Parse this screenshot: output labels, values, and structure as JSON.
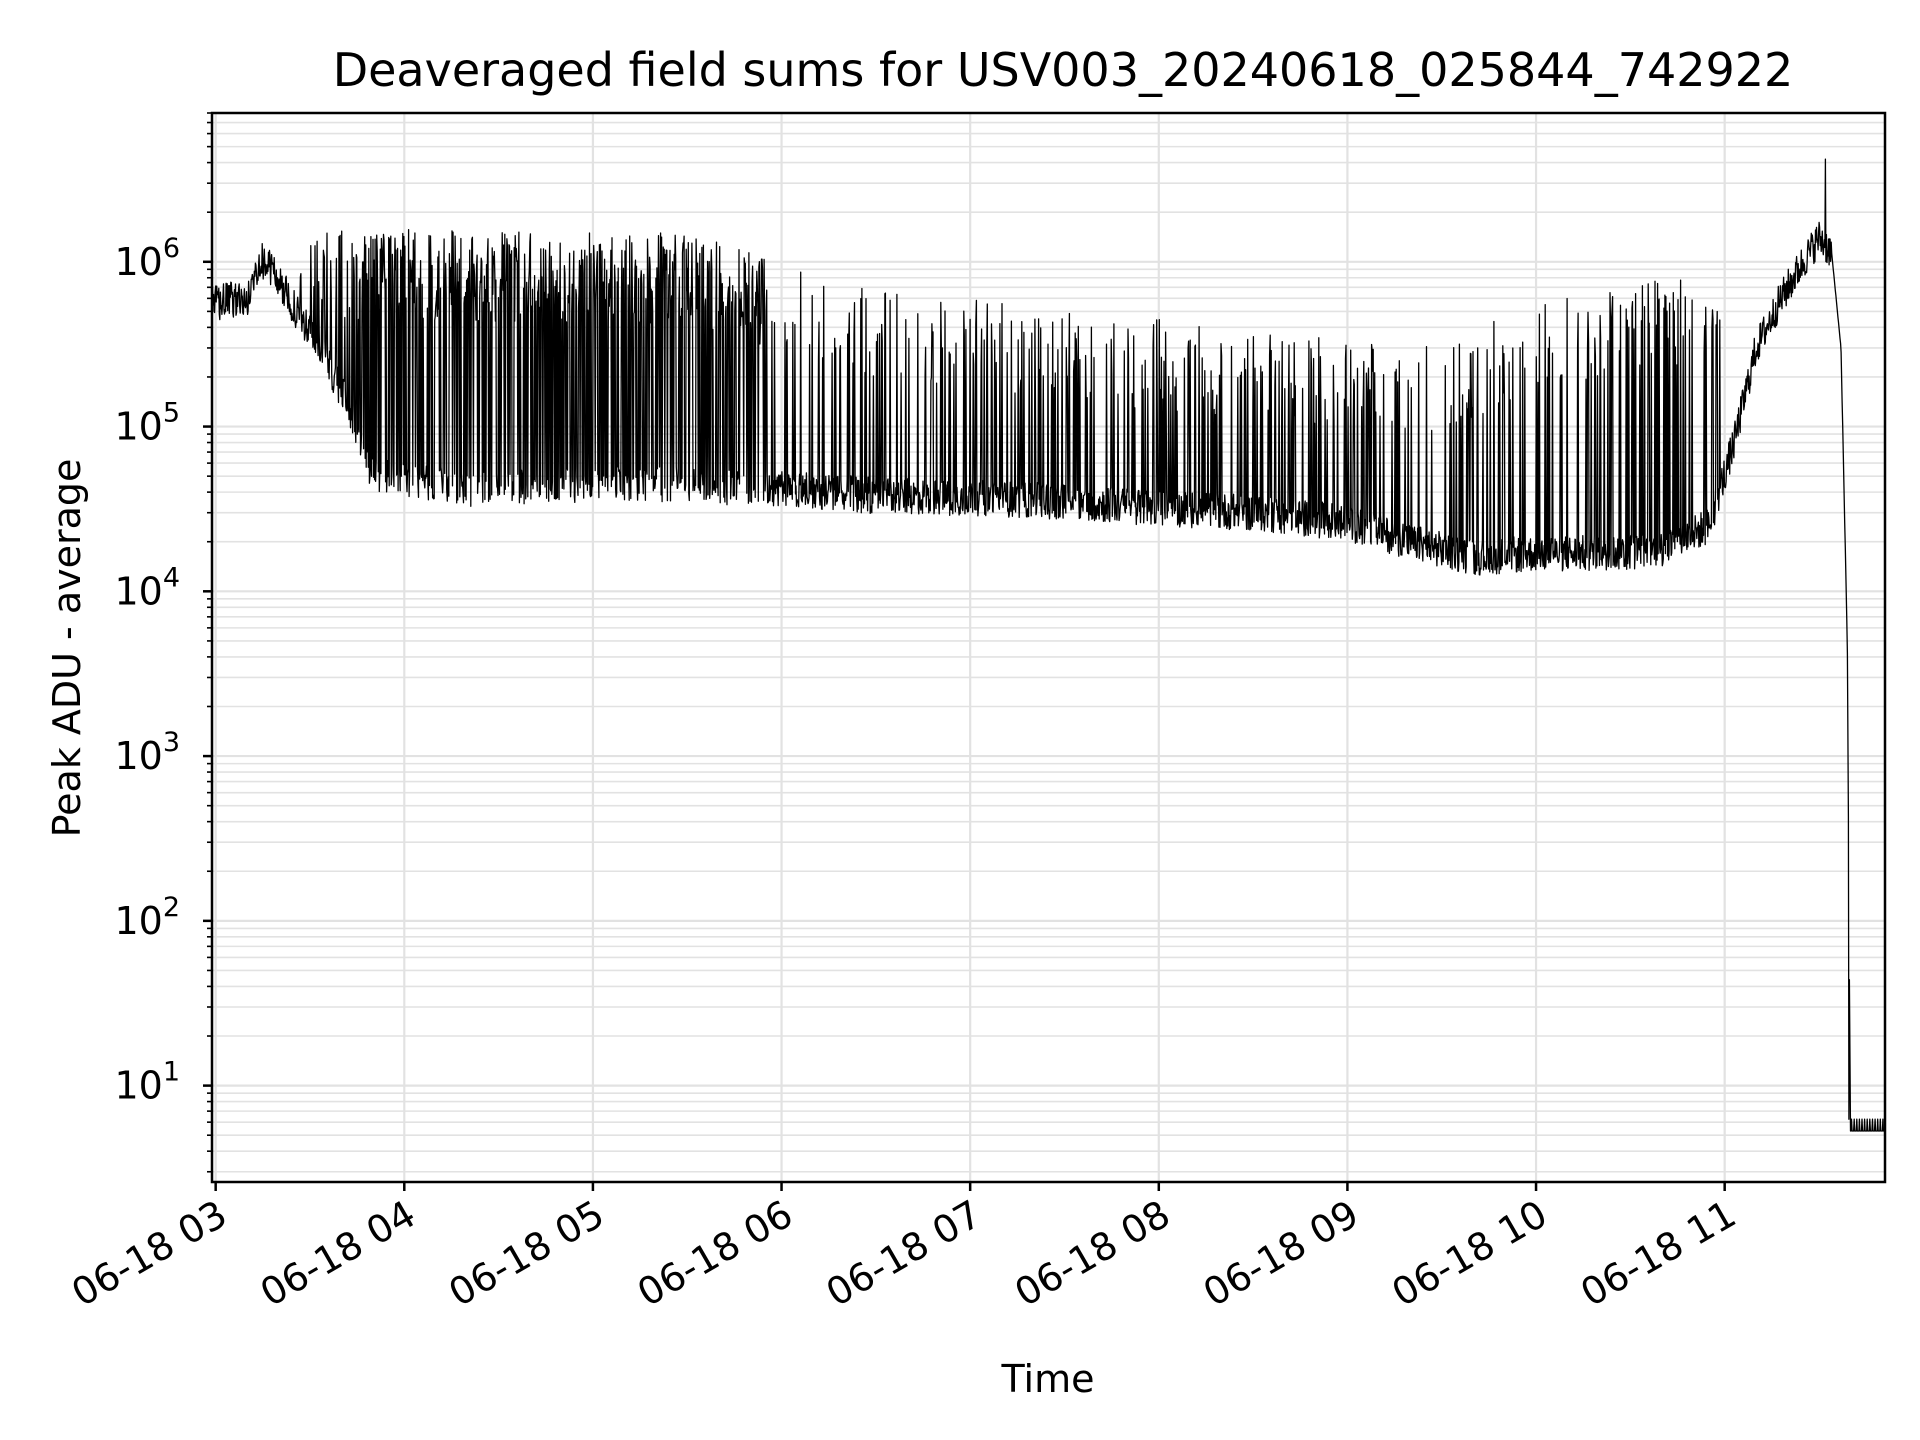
{
  "chart_data": {
    "type": "line",
    "title": "Deaveraged field sums for USV003_20240618_025844_742922",
    "xlabel": "Time",
    "ylabel": "Peak ADU - average",
    "y_scale": "log",
    "ylim": [
      2.6,
      8000000
    ],
    "xlim": [
      "2024-06-18T02:58:50",
      "2024-06-18T11:51:00"
    ],
    "grid": "major and minor, light gray",
    "line_color": "#000000",
    "grid_color": "#e2e2e2",
    "x_ticks": [
      {
        "t": "2024-06-18T03:00:00",
        "label": "06-18 03"
      },
      {
        "t": "2024-06-18T04:00:00",
        "label": "06-18 04"
      },
      {
        "t": "2024-06-18T05:00:00",
        "label": "06-18 05"
      },
      {
        "t": "2024-06-18T06:00:00",
        "label": "06-18 06"
      },
      {
        "t": "2024-06-18T07:00:00",
        "label": "06-18 07"
      },
      {
        "t": "2024-06-18T08:00:00",
        "label": "06-18 08"
      },
      {
        "t": "2024-06-18T09:00:00",
        "label": "06-18 09"
      },
      {
        "t": "2024-06-18T10:00:00",
        "label": "06-18 10"
      },
      {
        "t": "2024-06-18T11:00:00",
        "label": "06-18 11"
      }
    ],
    "y_ticks": [
      {
        "v": 10,
        "base": "10",
        "exp": "1"
      },
      {
        "v": 100,
        "base": "10",
        "exp": "2"
      },
      {
        "v": 1000,
        "base": "10",
        "exp": "3"
      },
      {
        "v": 10000,
        "base": "10",
        "exp": "4"
      },
      {
        "v": 100000,
        "base": "10",
        "exp": "5"
      },
      {
        "v": 1000000,
        "base": "10",
        "exp": "6"
      }
    ],
    "baseline": [
      [
        "2024-06-18T02:58:50",
        550000
      ],
      [
        "2024-06-18T03:07:00",
        600000
      ],
      [
        "2024-06-18T03:10:00",
        560000
      ],
      [
        "2024-06-18T03:14:00",
        1050000
      ],
      [
        "2024-06-18T03:18:00",
        900000
      ],
      [
        "2024-06-18T03:25:00",
        520000
      ],
      [
        "2024-06-18T03:33:00",
        300000
      ],
      [
        "2024-06-18T03:41:00",
        150000
      ],
      [
        "2024-06-18T03:50:00",
        50000
      ],
      [
        "2024-06-18T04:20:00",
        42000
      ],
      [
        "2024-06-18T05:00:00",
        45000
      ],
      [
        "2024-06-18T05:30:00",
        44000
      ],
      [
        "2024-06-18T06:00:00",
        42000
      ],
      [
        "2024-06-18T06:30:00",
        38000
      ],
      [
        "2024-06-18T07:00:00",
        37000
      ],
      [
        "2024-06-18T07:30:00",
        35000
      ],
      [
        "2024-06-18T08:00:00",
        32000
      ],
      [
        "2024-06-18T08:30:00",
        30000
      ],
      [
        "2024-06-18T09:00:00",
        26000
      ],
      [
        "2024-06-18T09:20:00",
        20000
      ],
      [
        "2024-06-18T09:40:00",
        16000
      ],
      [
        "2024-06-18T10:00:00",
        17000
      ],
      [
        "2024-06-18T10:20:00",
        17000
      ],
      [
        "2024-06-18T10:40:00",
        18000
      ],
      [
        "2024-06-18T10:55:00",
        25000
      ],
      [
        "2024-06-18T11:03:00",
        80000
      ],
      [
        "2024-06-18T11:10:00",
        300000
      ],
      [
        "2024-06-18T11:18:00",
        600000
      ],
      [
        "2024-06-18T11:25:00",
        1000000
      ],
      [
        "2024-06-18T11:30:00",
        1400000
      ],
      [
        "2024-06-18T11:34:00",
        1150000
      ],
      [
        "2024-06-18T11:37:00",
        300000
      ],
      [
        "2024-06-18T11:39:00",
        5000
      ],
      [
        "2024-06-18T11:40:00",
        5.3
      ],
      [
        "2024-06-18T11:51:00",
        5.3
      ]
    ],
    "spike_envelope": [
      [
        "2024-06-18T03:25:00",
        1600000
      ],
      [
        "2024-06-18T05:30:00",
        1500000
      ],
      [
        "2024-06-18T06:30:00",
        700000
      ],
      [
        "2024-06-18T07:30:00",
        500000
      ],
      [
        "2024-06-18T08:30:00",
        400000
      ],
      [
        "2024-06-18T09:30:00",
        300000
      ],
      [
        "2024-06-18T10:00:00",
        600000
      ],
      [
        "2024-06-18T10:55:00",
        900000
      ]
    ],
    "peak_max": 4200000,
    "floor_value": 5.3
  }
}
